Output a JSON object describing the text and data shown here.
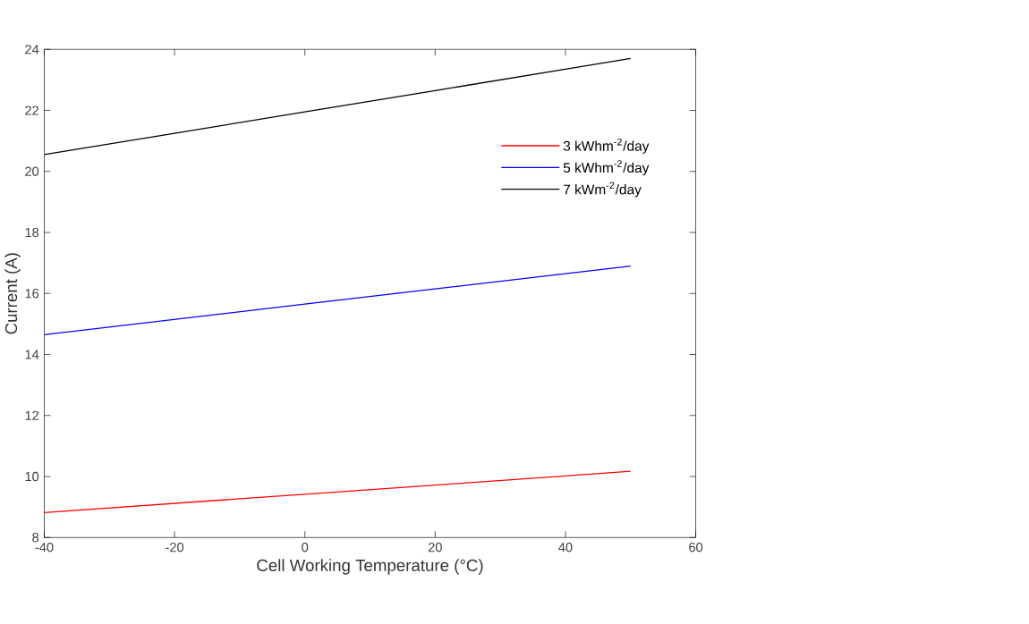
{
  "chart_data": {
    "type": "line",
    "xlabel": "Cell Working Temperature (°C)",
    "ylabel": "Current (A)",
    "x": [
      -40,
      -20,
      0,
      20,
      40,
      50
    ],
    "series": [
      {
        "name": "3 kWhm$^{-2}$/day",
        "color": "#ff0000",
        "values": [
          8.82,
          9.12,
          9.42,
          9.72,
          10.02,
          10.17
        ]
      },
      {
        "name": "5 kWhm$^{-2}$/day",
        "color": "#0000ff",
        "values": [
          14.65,
          15.15,
          15.65,
          16.15,
          16.65,
          16.9
        ]
      },
      {
        "name": "7 kWm$^{-2}$/day",
        "color": "#000000",
        "values": [
          20.55,
          21.25,
          21.95,
          22.65,
          23.35,
          23.7
        ]
      }
    ],
    "xlim": [
      -40,
      60
    ],
    "ylim": [
      8,
      24
    ],
    "xticks": [
      -40,
      -20,
      0,
      20,
      40,
      60
    ],
    "yticks": [
      8,
      10,
      12,
      14,
      16,
      18,
      20,
      22,
      24
    ],
    "legend": "top right",
    "grid": false,
    "marker": "none",
    "line_style": "solid"
  }
}
